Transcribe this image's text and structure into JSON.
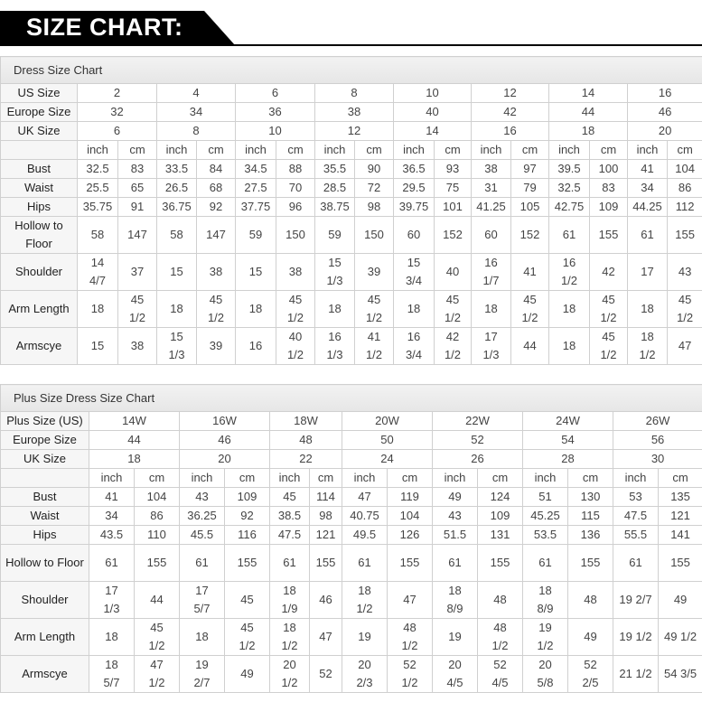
{
  "header": {
    "title": "SIZE CHART:"
  },
  "tables": [
    {
      "title": "Dress Size Chart",
      "size_rows": [
        {
          "label": "US Size",
          "values": [
            "2",
            "4",
            "6",
            "8",
            "10",
            "12",
            "14",
            "16"
          ]
        },
        {
          "label": "Europe Size",
          "values": [
            "32",
            "34",
            "36",
            "38",
            "40",
            "42",
            "44",
            "46"
          ]
        },
        {
          "label": "UK Size",
          "values": [
            "6",
            "8",
            "10",
            "12",
            "14",
            "16",
            "18",
            "20"
          ]
        }
      ],
      "unit_labels": [
        "inch",
        "cm"
      ],
      "measure_rows": [
        {
          "label": "Bust",
          "values": [
            "32.5",
            "83",
            "33.5",
            "84",
            "34.5",
            "88",
            "35.5",
            "90",
            "36.5",
            "93",
            "38",
            "97",
            "39.5",
            "100",
            "41",
            "104"
          ]
        },
        {
          "label": "Waist",
          "values": [
            "25.5",
            "65",
            "26.5",
            "68",
            "27.5",
            "70",
            "28.5",
            "72",
            "29.5",
            "75",
            "31",
            "79",
            "32.5",
            "83",
            "34",
            "86"
          ]
        },
        {
          "label": "Hips",
          "values": [
            "35.75",
            "91",
            "36.75",
            "92",
            "37.75",
            "96",
            "38.75",
            "98",
            "39.75",
            "101",
            "41.25",
            "105",
            "42.75",
            "109",
            "44.25",
            "112"
          ]
        },
        {
          "label": "Hollow to Floor",
          "values": [
            "58",
            "147",
            "58",
            "147",
            "59",
            "150",
            "59",
            "150",
            "60",
            "152",
            "60",
            "152",
            "61",
            "155",
            "61",
            "155"
          ]
        },
        {
          "label": "Shoulder",
          "values": [
            "14\n4/7",
            "37",
            "15",
            "38",
            "15",
            "38",
            "15\n1/3",
            "39",
            "15\n3/4",
            "40",
            "16\n1/7",
            "41",
            "16\n1/2",
            "42",
            "17",
            "43"
          ]
        },
        {
          "label": "Arm Length",
          "values": [
            "18",
            "45\n1/2",
            "18",
            "45\n1/2",
            "18",
            "45\n1/2",
            "18",
            "45\n1/2",
            "18",
            "45\n1/2",
            "18",
            "45\n1/2",
            "18",
            "45\n1/2",
            "18",
            "45\n1/2"
          ]
        },
        {
          "label": "Armscye",
          "values": [
            "15",
            "38",
            "15\n1/3",
            "39",
            "16",
            "40\n1/2",
            "16\n1/3",
            "41\n1/2",
            "16\n3/4",
            "42\n1/2",
            "17\n1/3",
            "44",
            "18",
            "45\n1/2",
            "18\n1/2",
            "47"
          ]
        }
      ]
    },
    {
      "title": "Plus Size Dress Size Chart",
      "size_rows": [
        {
          "label": "Plus Size (US)",
          "values": [
            "14W",
            "16W",
            "18W",
            "20W",
            "22W",
            "24W",
            "26W"
          ]
        },
        {
          "label": "Europe Size",
          "values": [
            "44",
            "46",
            "48",
            "50",
            "52",
            "54",
            "56"
          ]
        },
        {
          "label": "UK Size",
          "values": [
            "18",
            "20",
            "22",
            "24",
            "26",
            "28",
            "30"
          ]
        }
      ],
      "unit_labels": [
        "inch",
        "cm"
      ],
      "measure_rows": [
        {
          "label": "Bust",
          "values": [
            "41",
            "104",
            "43",
            "109",
            "45",
            "114",
            "47",
            "119",
            "49",
            "124",
            "51",
            "130",
            "53",
            "135"
          ]
        },
        {
          "label": "Waist",
          "values": [
            "34",
            "86",
            "36.25",
            "92",
            "38.5",
            "98",
            "40.75",
            "104",
            "43",
            "109",
            "45.25",
            "115",
            "47.5",
            "121"
          ]
        },
        {
          "label": "Hips",
          "values": [
            "43.5",
            "110",
            "45.5",
            "116",
            "47.5",
            "121",
            "49.5",
            "126",
            "51.5",
            "131",
            "53.5",
            "136",
            "55.5",
            "141"
          ]
        },
        {
          "label": "Hollow to Floor",
          "values": [
            "61",
            "155",
            "61",
            "155",
            "61",
            "155",
            "61",
            "155",
            "61",
            "155",
            "61",
            "155",
            "61",
            "155"
          ]
        },
        {
          "label": "Shoulder",
          "values": [
            "17\n1/3",
            "44",
            "17\n5/7",
            "45",
            "18\n1/9",
            "46",
            "18\n1/2",
            "47",
            "18\n8/9",
            "48",
            "18\n8/9",
            "48",
            "19 2/7",
            "49"
          ]
        },
        {
          "label": "Arm Length",
          "values": [
            "18",
            "45\n1/2",
            "18",
            "45\n1/2",
            "18\n1/2",
            "47",
            "19",
            "48\n1/2",
            "19",
            "48\n1/2",
            "19\n1/2",
            "49",
            "19 1/2",
            "49 1/2"
          ]
        },
        {
          "label": "Armscye",
          "values": [
            "18\n5/7",
            "47\n1/2",
            "19\n2/7",
            "49",
            "20\n1/2",
            "52",
            "20\n2/3",
            "52\n1/2",
            "20\n4/5",
            "52\n4/5",
            "20\n5/8",
            "52\n2/5",
            "21 1/2",
            "54 3/5"
          ]
        }
      ]
    }
  ]
}
